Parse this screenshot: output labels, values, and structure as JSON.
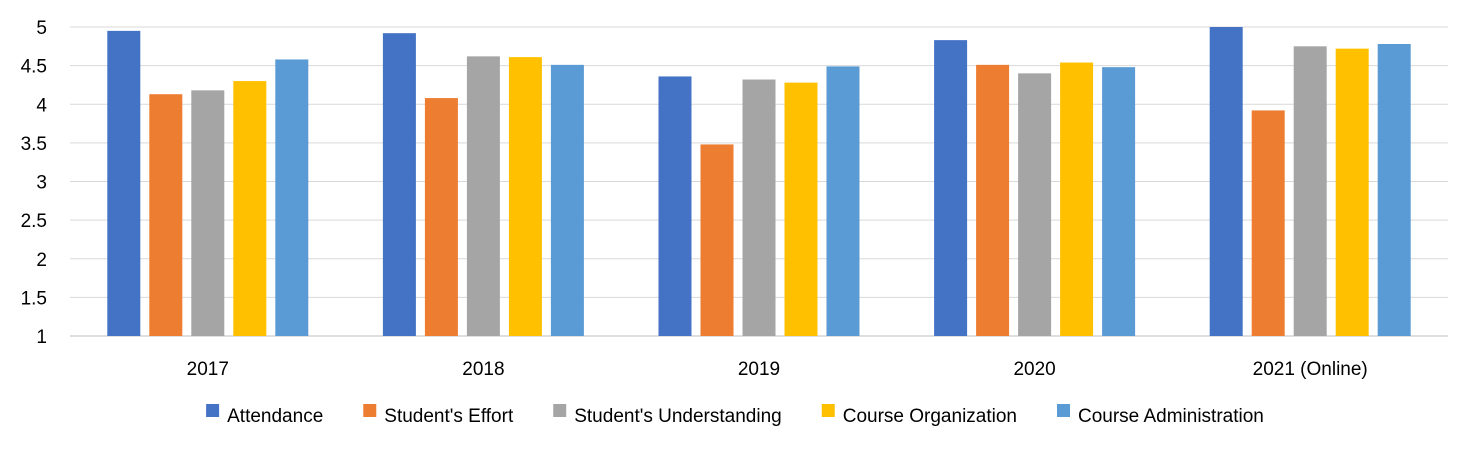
{
  "chart_data": {
    "type": "bar",
    "categories": [
      "2017",
      "2018",
      "2019",
      "2020",
      "2021 (Online)"
    ],
    "series": [
      {
        "name": "Attendance",
        "color": "#4472C4",
        "values": [
          4.95,
          4.92,
          4.36,
          4.83,
          5.0
        ]
      },
      {
        "name": "Student's Effort",
        "color": "#ED7D31",
        "values": [
          4.13,
          4.08,
          3.48,
          4.51,
          3.92
        ]
      },
      {
        "name": "Student's Understanding",
        "color": "#A5A5A5",
        "values": [
          4.18,
          4.62,
          4.32,
          4.4,
          4.75
        ]
      },
      {
        "name": "Course Organization",
        "color": "#FFC000",
        "values": [
          4.3,
          4.61,
          4.28,
          4.54,
          4.72
        ]
      },
      {
        "name": "Course Administration",
        "color": "#5B9BD5",
        "values": [
          4.58,
          4.51,
          4.49,
          4.48,
          4.78
        ]
      }
    ],
    "ylim": [
      1,
      5
    ],
    "yticks": [
      "1",
      "1.5",
      "2",
      "2.5",
      "3",
      "3.5",
      "4",
      "4.5",
      "5"
    ],
    "grid": true,
    "legend": "bottom"
  }
}
